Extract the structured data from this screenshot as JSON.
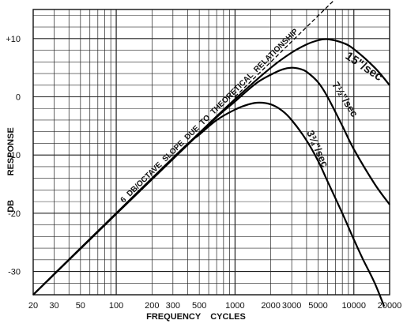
{
  "chart_data": {
    "type": "line",
    "x_scale": "log",
    "xlim": [
      20,
      20000
    ],
    "ylim": [
      -34,
      15
    ],
    "grid": true,
    "xlabel": "FREQUENCY    CYCLES",
    "ylabel": "DB          RESPONSE",
    "x_ticks": [
      {
        "value": 20,
        "label": "20"
      },
      {
        "value": 30,
        "label": "30"
      },
      {
        "value": 50,
        "label": "50"
      },
      {
        "value": 100,
        "label": "100"
      },
      {
        "value": 200,
        "label": "200"
      },
      {
        "value": 300,
        "label": "300"
      },
      {
        "value": 500,
        "label": "500"
      },
      {
        "value": 1000,
        "label": "1000"
      },
      {
        "value": 2000,
        "label": "2000"
      },
      {
        "value": 3000,
        "label": "3000"
      },
      {
        "value": 5000,
        "label": "5000"
      },
      {
        "value": 10000,
        "label": "10000"
      },
      {
        "value": 20000,
        "label": "20000"
      }
    ],
    "y_ticks": [
      {
        "value": 10,
        "label": "+10"
      },
      {
        "value": 0,
        "label": "0"
      },
      {
        "value": -10,
        "label": "-10"
      },
      {
        "value": -20,
        "label": "-20"
      },
      {
        "value": -30,
        "label": "-30"
      }
    ],
    "annotation": "6  DB/OCTAVE  SLOPE  DUE  TO  THEORETICAL  RELATIONSHIP",
    "series": [
      {
        "name": "15\"/sec",
        "x": [
          20,
          50,
          100,
          200,
          500,
          1000,
          2000,
          3000,
          4000,
          5000,
          6000,
          8000,
          10000,
          15000,
          20000
        ],
        "y": [
          -34,
          -26,
          -20,
          -14,
          -6.2,
          -0.4,
          5,
          7.6,
          9,
          9.7,
          9.9,
          9.3,
          8.2,
          5,
          2
        ]
      },
      {
        "name": "7½\"/sec",
        "x": [
          20,
          500,
          1000,
          1500,
          2000,
          2500,
          3000,
          3500,
          4000,
          5000,
          6000,
          8000,
          10000,
          15000,
          20000
        ],
        "y": [
          -34,
          -6.3,
          -0.8,
          2.3,
          3.8,
          4.7,
          5,
          4.8,
          4.3,
          2.5,
          0,
          -5,
          -9,
          -15,
          -18.5
        ]
      },
      {
        "name": "3¾\"/sec",
        "x": [
          20,
          300,
          500,
          700,
          1000,
          1300,
          1600,
          2000,
          2500,
          3000,
          4000,
          5000,
          6000,
          8000,
          10000,
          12000,
          15000,
          18000
        ],
        "y": [
          -34,
          -10.5,
          -6.5,
          -4,
          -2.2,
          -1.3,
          -1,
          -1.3,
          -2.4,
          -4,
          -7.5,
          -11,
          -14.5,
          -20,
          -24.5,
          -28,
          -32,
          -36
        ]
      },
      {
        "name": "",
        "dashed": true,
        "x": [
          1000,
          10000
        ],
        "y": [
          0,
          19.9
        ]
      }
    ]
  }
}
